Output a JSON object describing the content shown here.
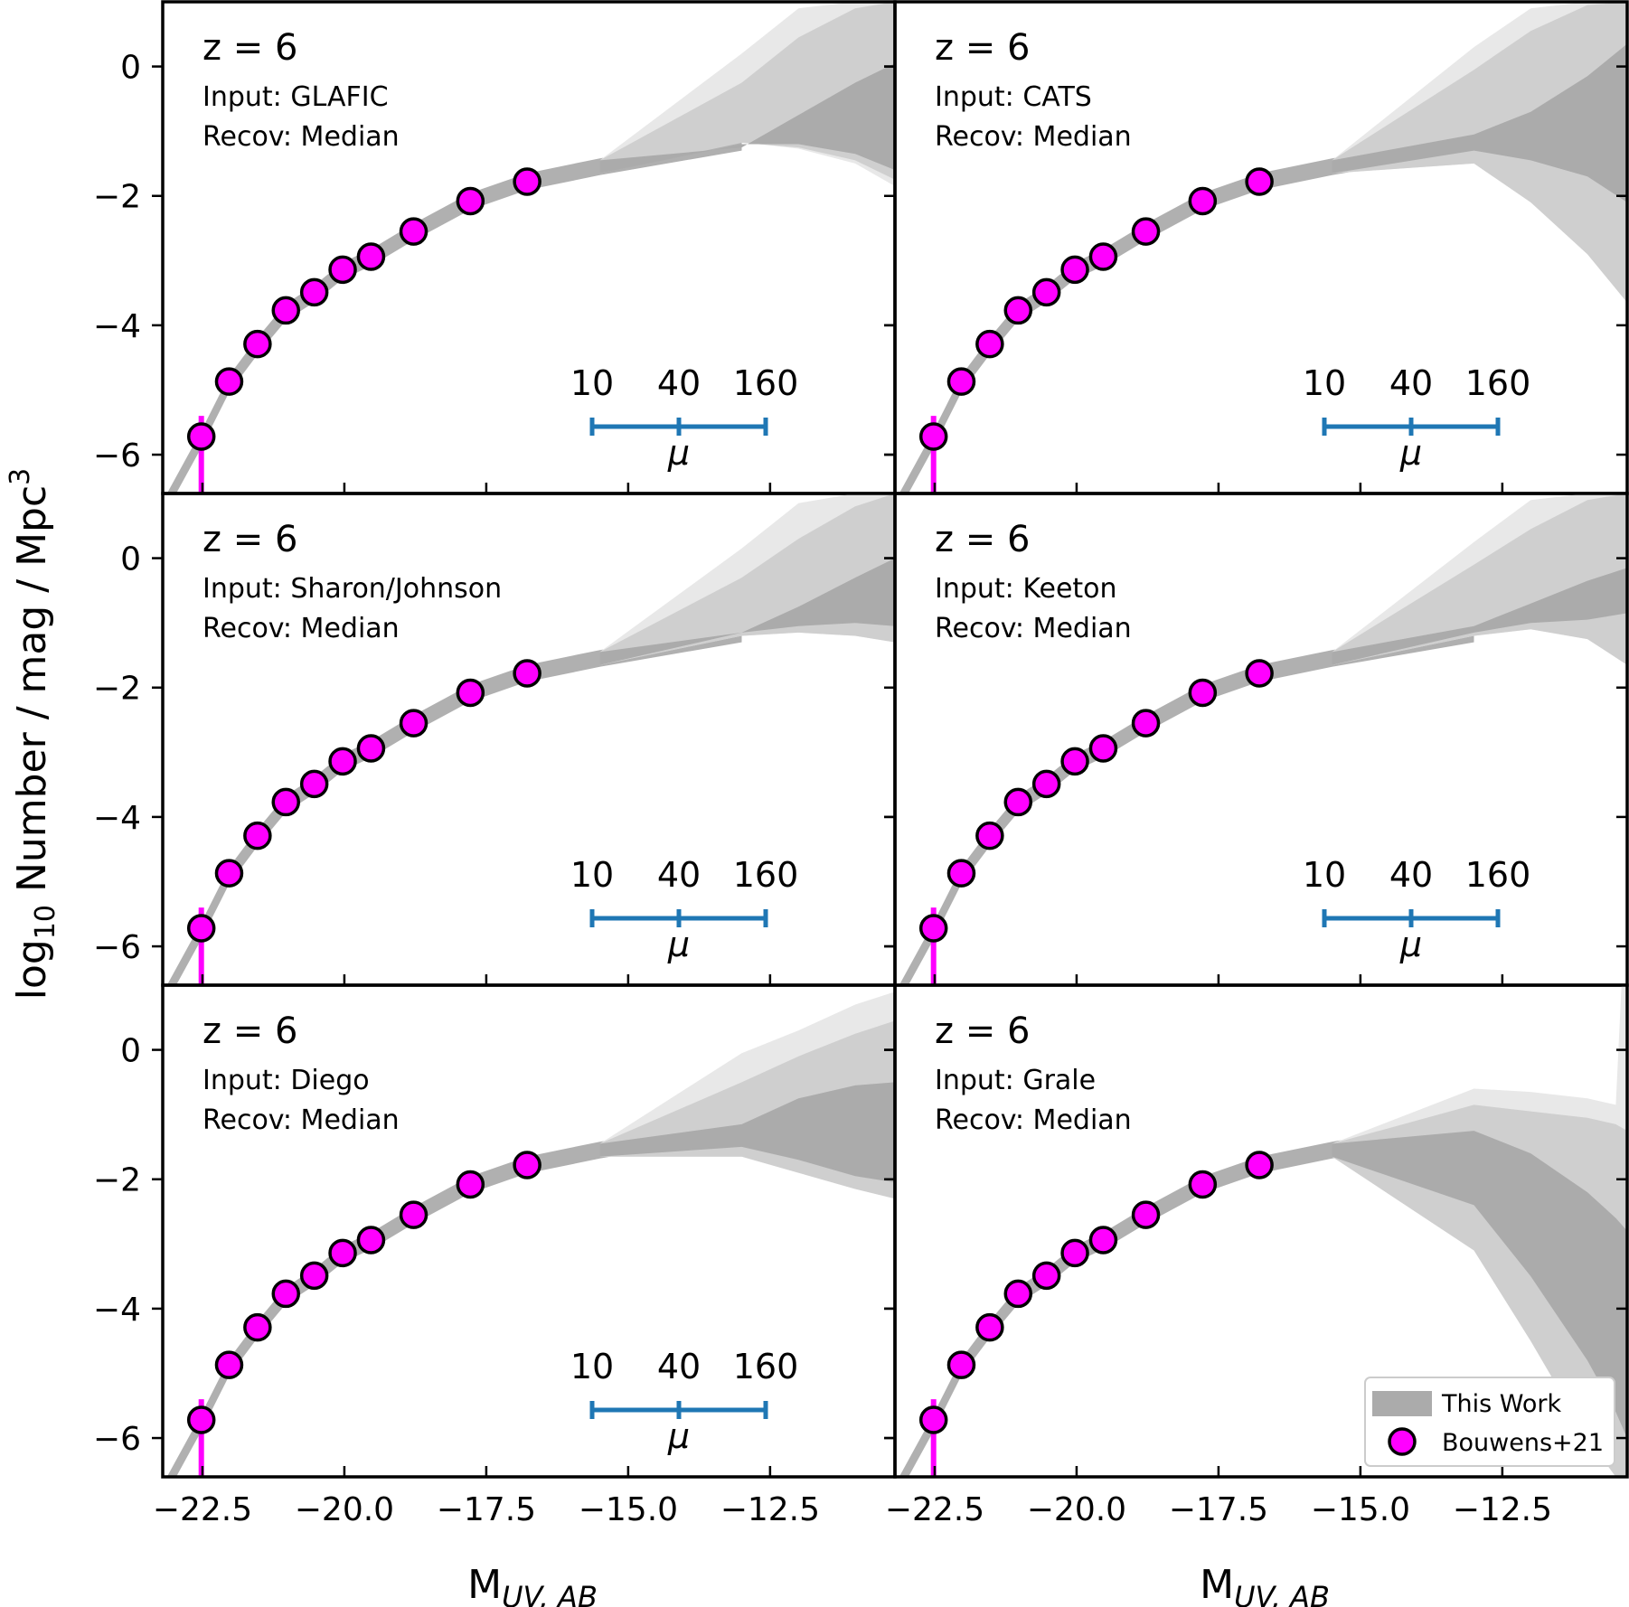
{
  "chart_data": {
    "type": "scatter",
    "layout": "3x2 grid of panels sharing axes",
    "xlabel": "M_UV,AB",
    "ylabel": "log10 Number / mag / Mpc^3",
    "xlim": [
      -23.2,
      -10.3
    ],
    "ylim": [
      -6.6,
      1.0
    ],
    "x_ticks": [
      -22.5,
      -20.0,
      -17.5,
      -15.0,
      -12.5
    ],
    "x_tick_labels": [
      "−22.5",
      "−20.0",
      "−17.5",
      "−15.0",
      "−12.5"
    ],
    "y_ticks": [
      0,
      -2,
      -4,
      -6
    ],
    "y_tick_labels": [
      "0",
      "−2",
      "−4",
      "−6"
    ],
    "points": {
      "name": "Bouwens+21",
      "x": [
        -22.52,
        -22.03,
        -21.53,
        -21.03,
        -20.53,
        -20.03,
        -19.53,
        -18.78,
        -17.78,
        -16.78
      ],
      "y": [
        -5.72,
        -4.87,
        -4.29,
        -3.77,
        -3.49,
        -3.14,
        -2.94,
        -2.55,
        -2.08,
        -1.78
      ],
      "error_bar": {
        "x": -22.52,
        "y_low": -6.6,
        "y_high": -5.4
      }
    },
    "legend": [
      {
        "label": "This Work",
        "marker": "grey band"
      },
      {
        "label": "Bouwens+21",
        "marker": "magenta circle"
      }
    ],
    "panels": [
      {
        "z_label": "z = 6",
        "input_label": "Input: GLAFIC",
        "recov_label": "Recov: Median",
        "mu_scale": {
          "labels": [
            "10",
            "40",
            "160"
          ],
          "symbol": "μ"
        },
        "bands": {
          "x": [
            -13.0,
            -12.0,
            -11.0,
            -10.3
          ],
          "dark_upper": [
            -1.25,
            -0.75,
            -0.25,
            0.05
          ],
          "dark_lower": [
            -1.2,
            -1.2,
            -1.35,
            -1.6
          ],
          "mid_upper": [
            -0.25,
            0.45,
            0.9,
            1.0
          ],
          "mid_lower": [
            -1.18,
            -1.25,
            -1.45,
            -1.75
          ],
          "light_upper": [
            0.2,
            0.9,
            1.0,
            1.0
          ],
          "light_lower": [
            -1.17,
            -1.27,
            -1.5,
            -1.85
          ]
        }
      },
      {
        "z_label": "z = 6",
        "input_label": "Input: CATS",
        "recov_label": "Recov: Median",
        "mu_scale": {
          "labels": [
            "10",
            "40",
            "160"
          ],
          "symbol": "μ"
        },
        "bands": {
          "x": [
            -13.0,
            -12.0,
            -11.0,
            -10.3
          ],
          "dark_upper": [
            -1.05,
            -0.7,
            -0.15,
            0.35
          ],
          "dark_lower": [
            -1.3,
            -1.45,
            -1.7,
            -2.1
          ],
          "mid_upper": [
            -0.05,
            0.55,
            0.95,
            1.0
          ],
          "mid_lower": [
            -1.5,
            -2.1,
            -2.9,
            -3.65
          ],
          "light_upper": [
            0.3,
            0.9,
            1.0,
            1.0
          ],
          "light_lower": [
            -1.5,
            -2.1,
            -2.9,
            -3.65
          ]
        }
      },
      {
        "z_label": "z = 6",
        "input_label": "Input: Sharon/Johnson",
        "recov_label": "Recov: Median",
        "mu_scale": {
          "labels": [
            "10",
            "40",
            "160"
          ],
          "symbol": "μ"
        },
        "bands": {
          "x": [
            -13.0,
            -12.0,
            -11.0,
            -10.3
          ],
          "dark_upper": [
            -1.15,
            -0.75,
            -0.3,
            0.0
          ],
          "dark_lower": [
            -1.15,
            -1.05,
            -1.0,
            -1.05
          ],
          "mid_upper": [
            -0.3,
            0.3,
            0.8,
            1.0
          ],
          "mid_lower": [
            -1.2,
            -1.15,
            -1.2,
            -1.3
          ],
          "light_upper": [
            0.15,
            0.85,
            1.0,
            1.0
          ],
          "light_lower": [
            -1.2,
            -1.15,
            -1.2,
            -1.3
          ]
        }
      },
      {
        "z_label": "z = 6",
        "input_label": "Input: Keeton",
        "recov_label": "Recov: Median",
        "mu_scale": {
          "labels": [
            "10",
            "40",
            "160"
          ],
          "symbol": "μ"
        },
        "bands": {
          "x": [
            -13.0,
            -12.0,
            -11.0,
            -10.3
          ],
          "dark_upper": [
            -1.05,
            -0.7,
            -0.35,
            -0.15
          ],
          "dark_lower": [
            -1.15,
            -1.0,
            -0.95,
            -0.85
          ],
          "mid_upper": [
            -0.1,
            0.45,
            0.9,
            1.0
          ],
          "mid_lower": [
            -1.2,
            -1.1,
            -1.25,
            -1.65
          ],
          "light_upper": [
            0.25,
            0.9,
            1.0,
            1.0
          ],
          "light_lower": [
            -1.2,
            -1.1,
            -1.25,
            -1.65
          ]
        }
      },
      {
        "z_label": "z = 6",
        "input_label": "Input: Diego",
        "recov_label": "Recov: Median",
        "mu_scale": {
          "labels": [
            "10",
            "40",
            "160"
          ],
          "symbol": "μ"
        },
        "bands": {
          "x": [
            -13.0,
            -12.0,
            -11.0,
            -10.3
          ],
          "dark_upper": [
            -1.15,
            -0.75,
            -0.55,
            -0.5
          ],
          "dark_lower": [
            -1.5,
            -1.7,
            -1.95,
            -2.05
          ],
          "mid_upper": [
            -0.5,
            -0.1,
            0.25,
            0.45
          ],
          "mid_lower": [
            -1.65,
            -1.9,
            -2.15,
            -2.3
          ],
          "light_upper": [
            -0.05,
            0.3,
            0.7,
            0.9
          ],
          "light_lower": [
            -1.65,
            -1.9,
            -2.15,
            -2.3
          ]
        }
      },
      {
        "z_label": "z = 6",
        "input_label": "Input: Grale",
        "recov_label": "Recov: Median",
        "mu_scale": null,
        "bands": {
          "x": [
            -13.0,
            -12.0,
            -11.0,
            -10.5,
            -10.4,
            -10.3
          ],
          "dark_upper": [
            -1.25,
            -1.6,
            -2.2,
            -2.6,
            -2.7,
            -2.8
          ],
          "dark_lower": [
            -2.4,
            -3.5,
            -4.8,
            -5.6,
            -5.8,
            -6.0
          ],
          "mid_upper": [
            -0.85,
            -0.95,
            -1.05,
            -1.15,
            -1.2,
            -1.25
          ],
          "mid_lower": [
            -3.1,
            -4.5,
            -6.0,
            -6.6,
            -6.6,
            -6.6
          ],
          "light_upper": [
            -0.6,
            -0.65,
            -0.75,
            -0.85,
            1.0,
            1.0
          ],
          "light_lower": [
            -3.1,
            -4.5,
            -6.0,
            -6.6,
            -6.6,
            -6.6
          ]
        }
      }
    ]
  }
}
